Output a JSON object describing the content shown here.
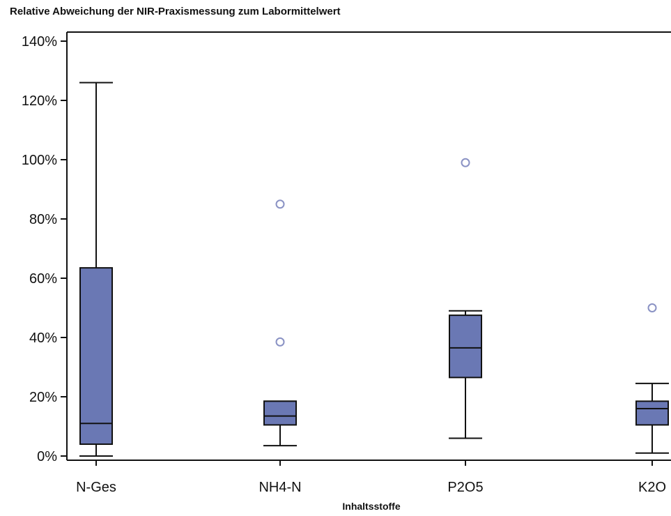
{
  "chart_data": {
    "type": "box",
    "title": "Relative Abweichung der NIR-Praxismessung zum Labormittelwert",
    "xlabel": "Inhaltsstoffe",
    "ylabel": "",
    "ylim": [
      0,
      140
    ],
    "yticks": [
      0,
      20,
      40,
      60,
      80,
      100,
      120,
      140
    ],
    "ytick_labels": [
      "0%",
      "20%",
      "40%",
      "60%",
      "80%",
      "100%",
      "120%",
      "140%"
    ],
    "categories": [
      "N-Ges",
      "NH4-N",
      "P2O5",
      "K2O"
    ],
    "boxes": [
      {
        "category": "N-Ges",
        "whisker_low": 0,
        "q1": 4,
        "median": 11,
        "q3": 63.5,
        "whisker_high": 126,
        "outliers": []
      },
      {
        "category": "NH4-N",
        "whisker_low": 3.5,
        "q1": 10.5,
        "median": 13.5,
        "q3": 18.5,
        "whisker_high": 18.5,
        "outliers": [
          38.5,
          85
        ]
      },
      {
        "category": "P2O5",
        "whisker_low": 6,
        "q1": 26.5,
        "median": 36.5,
        "q3": 47.5,
        "whisker_high": 49,
        "outliers": [
          99
        ]
      },
      {
        "category": "K2O",
        "whisker_low": 1,
        "q1": 10.5,
        "median": 16,
        "q3": 18.5,
        "whisker_high": 24.5,
        "outliers": [
          50
        ]
      }
    ],
    "colors": {
      "box_fill": "#6a78b4",
      "outlier": "#8a92c4",
      "line": "#111111"
    },
    "grid": false
  }
}
